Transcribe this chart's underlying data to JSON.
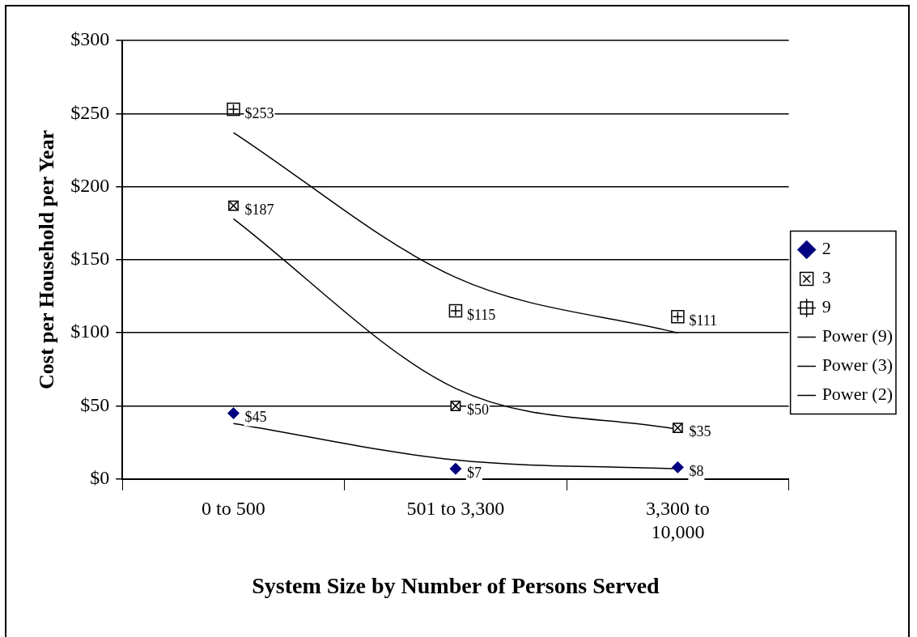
{
  "chart_data": {
    "type": "scatter",
    "xlabel": "System Size by Number of Persons Served",
    "ylabel": "Cost per Household per Year",
    "categories": [
      "0 to 500",
      "501 to 3,300",
      "3,300 to 10,000"
    ],
    "ylim": [
      0,
      300
    ],
    "yticks": [
      {
        "value": 0,
        "label": "$0"
      },
      {
        "value": 50,
        "label": "$50"
      },
      {
        "value": 100,
        "label": "$100"
      },
      {
        "value": 150,
        "label": "$150"
      },
      {
        "value": 200,
        "label": "$200"
      },
      {
        "value": 250,
        "label": "$250"
      },
      {
        "value": 300,
        "label": "$300"
      }
    ],
    "grid": "y",
    "legend": "right",
    "series": [
      {
        "name": "2",
        "marker": "diamond",
        "color": "#000080",
        "values": [
          45,
          7,
          8
        ],
        "value_labels": [
          "$45",
          "$7",
          "$8"
        ]
      },
      {
        "name": "3",
        "marker": "square",
        "color": "#000000",
        "values": [
          187,
          50,
          35
        ],
        "value_labels": [
          "$187",
          "$50",
          "$35"
        ]
      },
      {
        "name": "9",
        "marker": "cross",
        "color": "#000000",
        "values": [
          253,
          115,
          111
        ],
        "value_labels": [
          "$253",
          "$115",
          "$111"
        ]
      },
      {
        "name": "Power (9)",
        "type": "line",
        "color": "#000000",
        "values": [
          237,
          138,
          100
        ]
      },
      {
        "name": "Power (3)",
        "type": "line",
        "color": "#000000",
        "values": [
          178,
          62,
          34
        ]
      },
      {
        "name": "Power (2)",
        "type": "line",
        "color": "#000000",
        "values": [
          38,
          13,
          7
        ]
      }
    ]
  }
}
